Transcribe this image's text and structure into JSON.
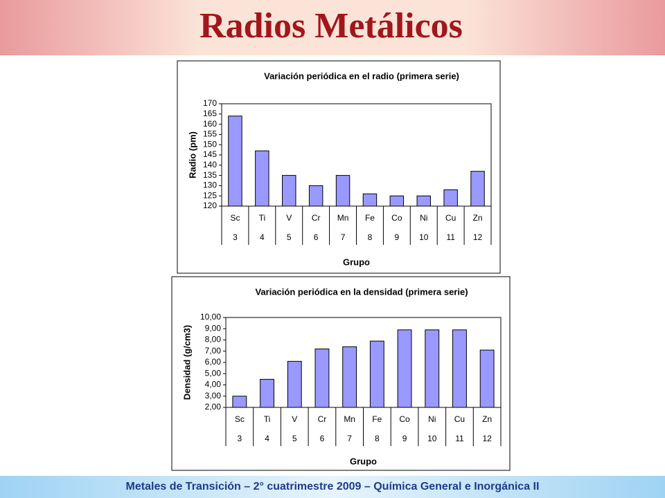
{
  "header": {
    "title": "Radios  Metálicos"
  },
  "footer": {
    "text": "Metales de Transición – 2° cuatrimestre 2009 – Química General e Inorgánica II"
  },
  "chart_data": [
    {
      "type": "bar",
      "title": "Variación periódica en el radio (primera serie)",
      "y_label": "Radio  (pm)",
      "x_label": "Grupo",
      "categories": [
        "Sc",
        "Ti",
        "V",
        "Cr",
        "Mn",
        "Fe",
        "Co",
        "Ni",
        "Cu",
        "Zn"
      ],
      "groups": [
        "3",
        "4",
        "5",
        "6",
        "7",
        "8",
        "9",
        "10",
        "11",
        "12"
      ],
      "values": [
        164,
        147,
        135,
        130,
        135,
        126,
        125,
        125,
        128,
        137
      ],
      "color": "#9999ff",
      "ylim": [
        120,
        170
      ],
      "yticks": [
        120,
        125,
        130,
        135,
        140,
        145,
        150,
        155,
        160,
        165,
        170
      ]
    },
    {
      "type": "bar",
      "title": "Variación periódica en la densidad (primera serie)",
      "y_label": "Densidad  (g/cm3)",
      "x_label": "Grupo",
      "categories": [
        "Sc",
        "Ti",
        "V",
        "Cr",
        "Mn",
        "Fe",
        "Co",
        "Ni",
        "Cu",
        "Zn"
      ],
      "groups": [
        "3",
        "4",
        "5",
        "6",
        "7",
        "8",
        "9",
        "10",
        "11",
        "12"
      ],
      "values": [
        3.0,
        4.5,
        6.1,
        7.2,
        7.4,
        7.9,
        8.9,
        8.9,
        8.9,
        7.1
      ],
      "color": "#9999ff",
      "ylim": [
        2,
        10
      ],
      "yticks": [
        {
          "value": 2,
          "label": "2,00"
        },
        {
          "value": 3,
          "label": "3,00"
        },
        {
          "value": 4,
          "label": "4,00"
        },
        {
          "value": 5,
          "label": "5,00"
        },
        {
          "value": 6,
          "label": "6,00"
        },
        {
          "value": 7,
          "label": "7,00"
        },
        {
          "value": 8,
          "label": "8,00"
        },
        {
          "value": 9,
          "label": "9,00"
        },
        {
          "value": 10,
          "label": "10,00"
        }
      ]
    }
  ]
}
